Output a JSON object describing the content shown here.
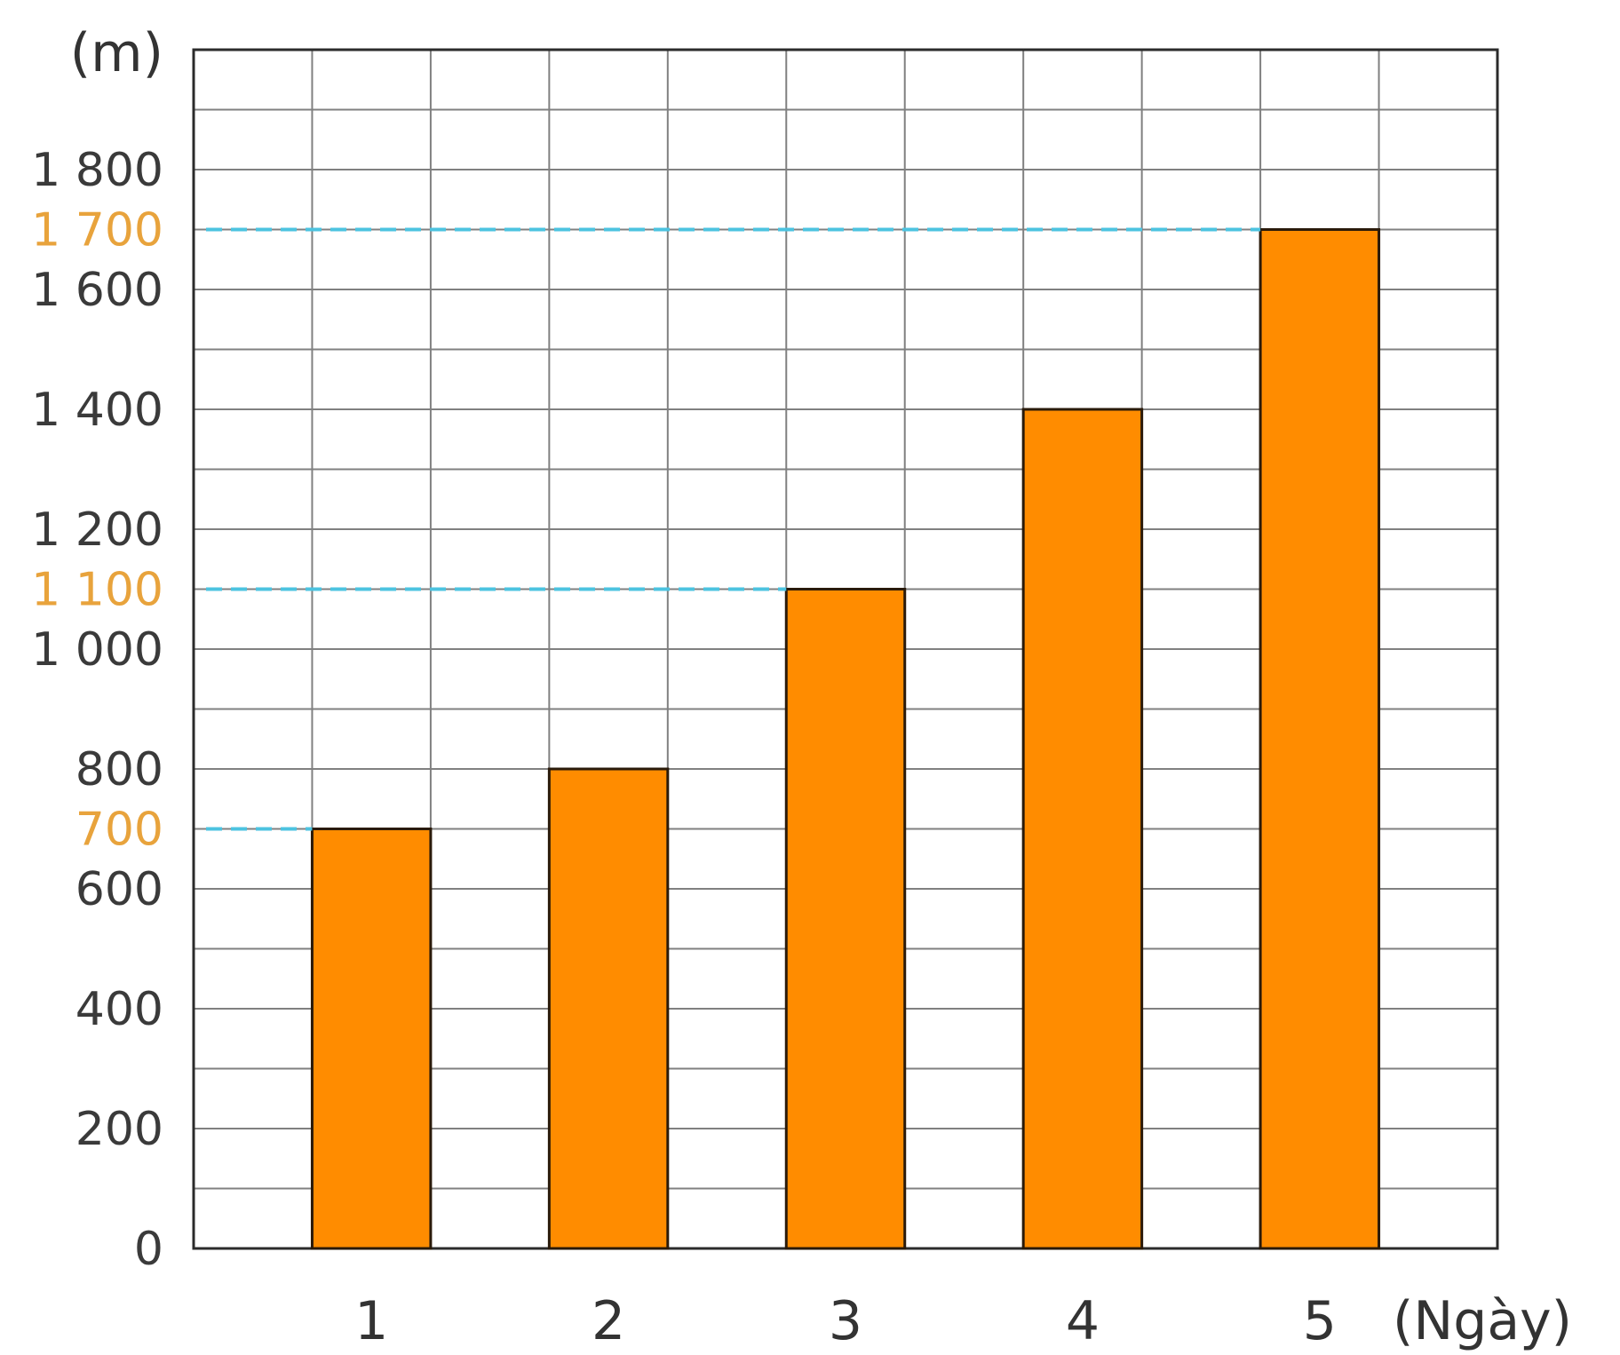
{
  "chart_data": {
    "type": "bar",
    "categories": [
      "1",
      "2",
      "3",
      "4",
      "5"
    ],
    "values": [
      700,
      800,
      1100,
      1400,
      1700
    ],
    "ylabel": "(m)",
    "xlabel": "(Ngày)",
    "ylim": [
      0,
      2000
    ],
    "yticks": [
      "0",
      "200",
      "400",
      "600",
      "800",
      "1 000",
      "1 200",
      "1 400",
      "1 600",
      "1 800"
    ],
    "ytick_values": [
      0,
      200,
      400,
      600,
      800,
      1000,
      1200,
      1400,
      1600,
      1800
    ],
    "highlighted_values": [
      {
        "value": 700,
        "label": "700",
        "to_category": "1"
      },
      {
        "value": 1100,
        "label": "1 100",
        "to_category": "3"
      },
      {
        "value": 1700,
        "label": "1 700",
        "to_category": "5"
      }
    ],
    "grid": true,
    "colors": {
      "bar": "#ff8c00",
      "bar_outline": "#2a1a0a",
      "grid": "#808080",
      "guide_line": "#4cc3e0",
      "highlight_text": "#e8a33c",
      "text": "#3a3a3a"
    }
  }
}
